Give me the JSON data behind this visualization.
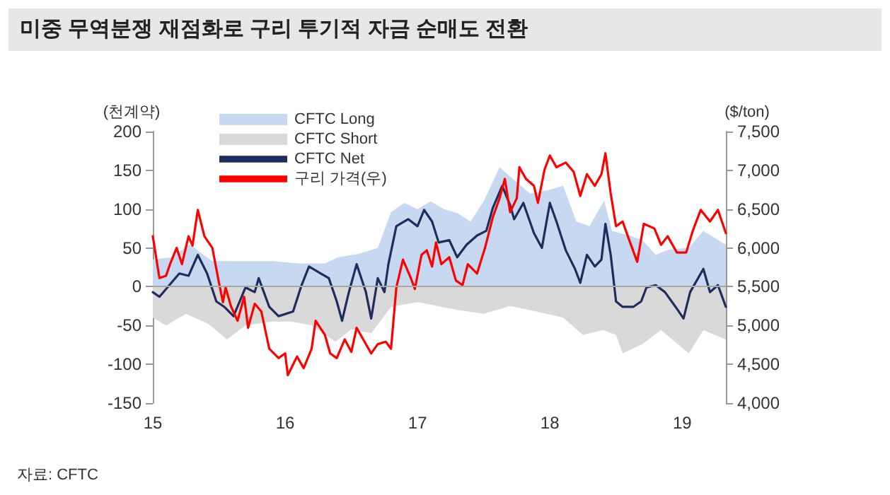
{
  "chart_data": {
    "type": "line",
    "title": "미중 무역분쟁 재점화로 구리 투기적 자금 순매도 전환",
    "ylabel": "(천계약)",
    "y2label": "($/ton)",
    "annotations": [
      "자료: CFTC"
    ],
    "xlim": [
      2015,
      2019.33
    ],
    "xticks": [
      {
        "value": 2015,
        "label": "15"
      },
      {
        "value": 2016,
        "label": "16"
      },
      {
        "value": 2017,
        "label": "17"
      },
      {
        "value": 2018,
        "label": "18"
      },
      {
        "value": 2019,
        "label": "19"
      }
    ],
    "ylim": [
      -150,
      200
    ],
    "yticks": [
      -150,
      -100,
      -50,
      0,
      50,
      100,
      150,
      200
    ],
    "y2lim": [
      4000,
      7500
    ],
    "y2ticks": [
      {
        "value": 4000,
        "label": "4,000"
      },
      {
        "value": 4500,
        "label": "4,500"
      },
      {
        "value": 5000,
        "label": "5,000"
      },
      {
        "value": 5500,
        "label": "5,500"
      },
      {
        "value": 6000,
        "label": "6,000"
      },
      {
        "value": 6500,
        "label": "6,500"
      },
      {
        "value": 7000,
        "label": "7,000"
      },
      {
        "value": 7500,
        "label": "7,500"
      }
    ],
    "grid": false,
    "legend": "top left",
    "marker": "none",
    "ref_lines": [
      {
        "axis": "y",
        "value": 0,
        "color": "#a6a6a6"
      }
    ],
    "series": [
      {
        "name": "CFTC Long",
        "type": "area",
        "color": "#c6d9f1",
        "x": [
          2015.0,
          2015.15,
          2015.28,
          2015.35,
          2015.45,
          2015.7,
          2015.9,
          2016.1,
          2016.3,
          2016.4,
          2016.55,
          2016.7,
          2016.8,
          2016.9,
          2017.0,
          2017.1,
          2017.2,
          2017.3,
          2017.4,
          2017.5,
          2017.62,
          2017.72,
          2017.85,
          2018.0,
          2018.1,
          2018.2,
          2018.3,
          2018.41,
          2018.47,
          2018.6,
          2018.7,
          2018.8,
          2018.9,
          2019.05,
          2019.16,
          2019.33
        ],
        "values": [
          35,
          38,
          55,
          45,
          33,
          33,
          33,
          30,
          30,
          38,
          42,
          50,
          96,
          108,
          100,
          110,
          100,
          95,
          84,
          110,
          154,
          139,
          120,
          125,
          130,
          84,
          78,
          111,
          72,
          66,
          60,
          41,
          48,
          50,
          72,
          54
        ]
      },
      {
        "name": "CFTC Short",
        "type": "area",
        "color": "#d9d9d9",
        "x": [
          2015.0,
          2015.1,
          2015.25,
          2015.42,
          2015.56,
          2015.7,
          2015.9,
          2016.05,
          2016.2,
          2016.38,
          2016.5,
          2016.65,
          2016.8,
          2017.0,
          2017.3,
          2017.5,
          2017.7,
          2017.9,
          2018.1,
          2018.25,
          2018.4,
          2018.5,
          2018.55,
          2018.7,
          2018.84,
          2019.05,
          2019.16,
          2019.33
        ],
        "values": [
          -40,
          -50,
          -35,
          -48,
          -68,
          -50,
          -45,
          -45,
          -50,
          -71,
          -55,
          -60,
          -26,
          -20,
          -30,
          -35,
          -25,
          -32,
          -40,
          -62,
          -56,
          -62,
          -86,
          -74,
          -56,
          -86,
          -56,
          -68
        ]
      },
      {
        "name": "CFTC Net",
        "type": "line",
        "color": "#1f2d5c",
        "x": [
          2015.0,
          2015.05,
          2015.2,
          2015.27,
          2015.34,
          2015.41,
          2015.48,
          2015.54,
          2015.61,
          2015.7,
          2015.77,
          2015.8,
          2015.88,
          2015.95,
          2016.06,
          2016.12,
          2016.18,
          2016.27,
          2016.33,
          2016.39,
          2016.43,
          2016.48,
          2016.54,
          2016.61,
          2016.65,
          2016.7,
          2016.75,
          2016.78,
          2016.84,
          2016.93,
          2017.0,
          2017.05,
          2017.11,
          2017.16,
          2017.24,
          2017.3,
          2017.37,
          2017.45,
          2017.52,
          2017.57,
          2017.64,
          2017.7,
          2017.73,
          2017.8,
          2017.88,
          2017.94,
          2018.0,
          2018.05,
          2018.12,
          2018.19,
          2018.23,
          2018.28,
          2018.34,
          2018.39,
          2018.42,
          2018.46,
          2018.5,
          2018.55,
          2018.63,
          2018.69,
          2018.73,
          2018.8,
          2018.87,
          2018.95,
          2019.01,
          2019.06,
          2019.16,
          2019.21,
          2019.27,
          2019.33
        ],
        "values": [
          -7,
          -13,
          17,
          14,
          41,
          17,
          -19,
          -26,
          -38,
          -1,
          -7,
          11,
          -26,
          -38,
          -32,
          0,
          26,
          17,
          11,
          -19,
          -44,
          -8,
          29,
          -7,
          -41,
          11,
          -7,
          29,
          78,
          87,
          78,
          99,
          84,
          57,
          60,
          38,
          54,
          66,
          72,
          102,
          130,
          105,
          87,
          108,
          69,
          50,
          108,
          84,
          47,
          23,
          5,
          41,
          26,
          35,
          81,
          41,
          -19,
          -26,
          -26,
          -19,
          -1,
          2,
          -7,
          -26,
          -41,
          -7,
          23,
          -7,
          2,
          -26
        ]
      },
      {
        "name": "구리 가격(우)",
        "type": "line",
        "axis": "y2",
        "color": "#ff0000",
        "x": [
          2015.0,
          2015.05,
          2015.1,
          2015.13,
          2015.18,
          2015.22,
          2015.27,
          2015.3,
          2015.34,
          2015.39,
          2015.45,
          2015.5,
          2015.53,
          2015.55,
          2015.59,
          2015.64,
          2015.69,
          2015.72,
          2015.77,
          2015.82,
          2015.88,
          2015.95,
          2016.0,
          2016.02,
          2016.09,
          2016.14,
          2016.2,
          2016.23,
          2016.3,
          2016.34,
          2016.39,
          2016.45,
          2016.5,
          2016.54,
          2016.59,
          2016.65,
          2016.7,
          2016.76,
          2016.8,
          2016.84,
          2016.89,
          2016.95,
          2016.98,
          2017.03,
          2017.07,
          2017.11,
          2017.14,
          2017.18,
          2017.24,
          2017.29,
          2017.34,
          2017.38,
          2017.45,
          2017.51,
          2017.57,
          2017.62,
          2017.66,
          2017.7,
          2017.75,
          2017.77,
          2017.82,
          2017.88,
          2017.91,
          2017.96,
          2018.0,
          2018.05,
          2018.12,
          2018.18,
          2018.23,
          2018.28,
          2018.34,
          2018.39,
          2018.42,
          2018.46,
          2018.5,
          2018.55,
          2018.6,
          2018.66,
          2018.71,
          2018.79,
          2018.84,
          2018.89,
          2018.96,
          2019.03,
          2019.08,
          2019.14,
          2019.21,
          2019.27,
          2019.33
        ],
        "values": [
          6150,
          5610,
          5640,
          5790,
          6000,
          5790,
          6150,
          6030,
          6490,
          6150,
          6000,
          5550,
          5300,
          5490,
          5250,
          5060,
          5370,
          4970,
          5280,
          5180,
          4700,
          4580,
          4640,
          4360,
          4600,
          4450,
          4700,
          5060,
          4880,
          4640,
          4580,
          4820,
          4660,
          4970,
          4820,
          4640,
          4760,
          4790,
          4700,
          5490,
          5850,
          5610,
          5470,
          5910,
          5970,
          5760,
          6070,
          5790,
          5880,
          5580,
          5520,
          5790,
          5670,
          6000,
          6400,
          6640,
          6890,
          6460,
          6640,
          7040,
          6890,
          6800,
          6580,
          7010,
          7190,
          7040,
          7100,
          6980,
          6670,
          6950,
          6800,
          6950,
          7220,
          6700,
          6280,
          6340,
          6100,
          5820,
          6310,
          6250,
          6040,
          6150,
          5940,
          5940,
          6220,
          6490,
          6340,
          6490,
          6190
        ]
      }
    ]
  }
}
